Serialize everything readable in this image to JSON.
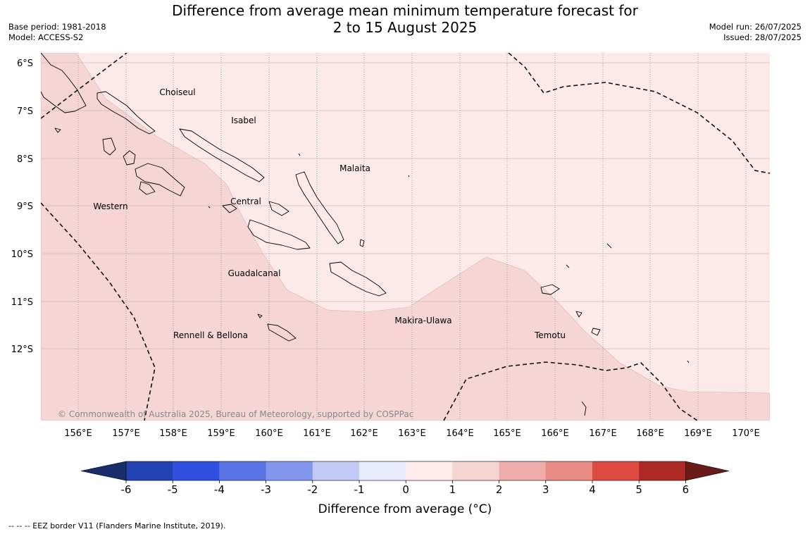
{
  "title": {
    "line1": "Difference from average mean minimum temperature forecast for",
    "line2": "2 to 15 August 2025"
  },
  "meta_left": {
    "base_period": "Base period: 1981-2018",
    "model": "Model: ACCESS-S2"
  },
  "meta_right": {
    "model_run": "Model run: 26/07/2025",
    "issued": "Issued: 28/07/2025"
  },
  "map": {
    "lat_labels": [
      "6°S",
      "7°S",
      "8°S",
      "9°S",
      "10°S",
      "11°S",
      "12°S"
    ],
    "lon_labels": [
      "156°E",
      "157°E",
      "158°E",
      "159°E",
      "160°E",
      "161°E",
      "162°E",
      "163°E",
      "164°E",
      "165°E",
      "166°E",
      "167°E",
      "168°E",
      "169°E",
      "170°E"
    ],
    "regions": [
      "Choiseul",
      "Isabel",
      "Malaita",
      "Western",
      "Central",
      "Guadalcanal",
      "Makira-Ulawa",
      "Rennell & Bellona",
      "Temotu"
    ],
    "copyright": "© Commonwealth of Australia 2025, Bureau of Meteorology, supported by COSPPac",
    "fill_categories": [
      {
        "range": "0 to 1",
        "color": "#fbeae9"
      },
      {
        "range": "1 to 2",
        "color": "#f5d6d5"
      }
    ]
  },
  "colorbar": {
    "ticks": [
      "-6",
      "-5",
      "-4",
      "-3",
      "-2",
      "-1",
      "0",
      "1",
      "2",
      "3",
      "4",
      "5",
      "6"
    ],
    "colors": [
      "#2241b2",
      "#2f4fe0",
      "#5a74e6",
      "#8398ed",
      "#c1c9f4",
      "#e8ebfb",
      "#fdeceb",
      "#f6d4d2",
      "#eeadaa",
      "#e78a84",
      "#dd4a3f",
      "#ad2925"
    ],
    "low_extend_color": "#1a2d6b",
    "high_extend_color": "#6a1b17",
    "label": "Difference from average (°C)"
  },
  "footer": {
    "legend_text": "--  --  -- EEZ border V11 (Flanders Marine Institute, 2019)."
  }
}
